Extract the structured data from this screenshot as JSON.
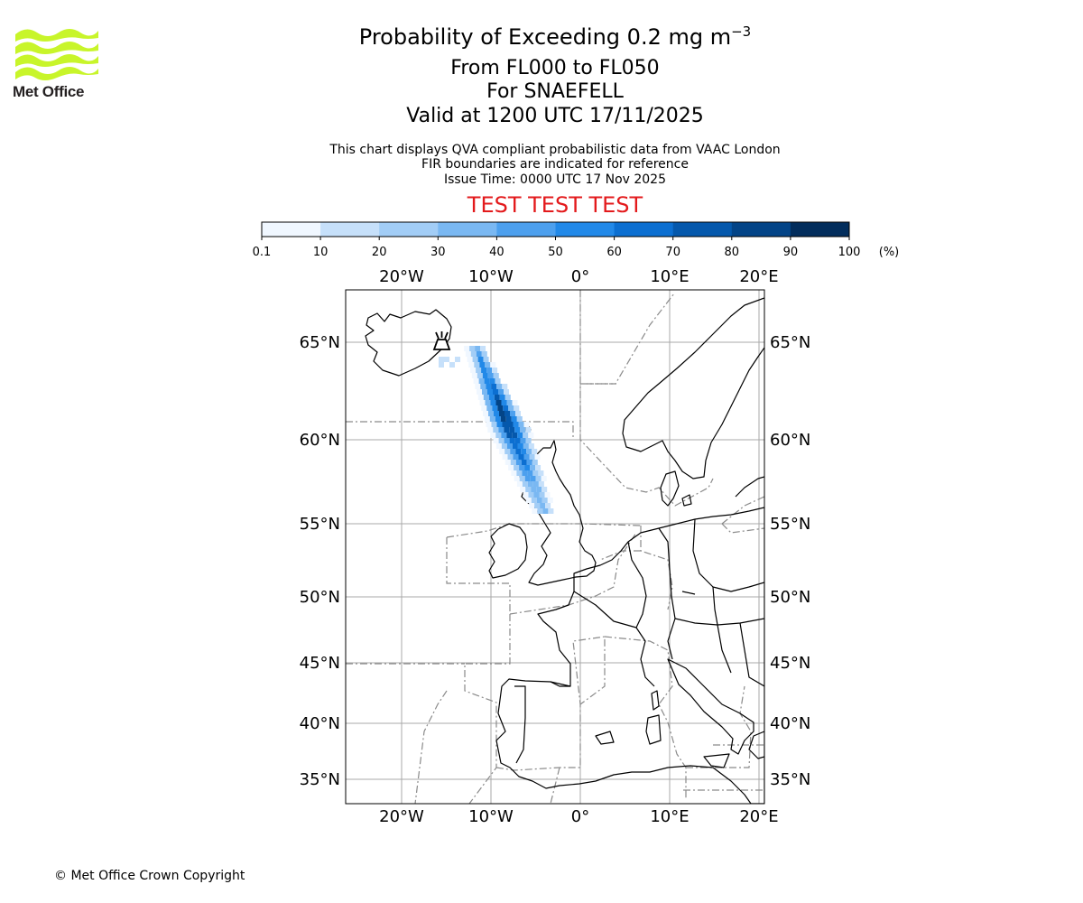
{
  "header": {
    "logo_text": "Met Office",
    "title_main": "Probability of Exceeding 0.2 mg m",
    "title_sup": "−3",
    "levels": "From FL000 to FL050",
    "volcano": "For SNAEFELL",
    "valid": "Valid at 1200 UTC 17/11/2025",
    "note_1": "This chart displays QVA compliant probabilistic data from VAAC London",
    "note_2": "FIR boundaries are indicated for reference",
    "note_3": "Issue Time: 0000 UTC 17 Nov 2025",
    "test_banner": "TEST TEST TEST"
  },
  "colorbar": {
    "ticks": [
      "0.1",
      "10",
      "20",
      "30",
      "40",
      "50",
      "60",
      "70",
      "80",
      "90",
      "100"
    ],
    "unit": "(%)",
    "colors": [
      "#f0f7ff",
      "#c6e0fa",
      "#a2cdf6",
      "#7ab8f2",
      "#4da0ee",
      "#2289e8",
      "#0c6fd1",
      "#0558ac",
      "#034487",
      "#022d5c"
    ]
  },
  "map": {
    "lon_labels": [
      "20°W",
      "10°W",
      "0°",
      "10°E",
      "20°E"
    ],
    "lat_labels": [
      "65°N",
      "60°N",
      "55°N",
      "50°N",
      "45°N",
      "40°N",
      "35°N"
    ],
    "volcano_icon": "volcano-icon"
  },
  "footer": {
    "copyright": "© Met Office Crown Copyright"
  }
}
